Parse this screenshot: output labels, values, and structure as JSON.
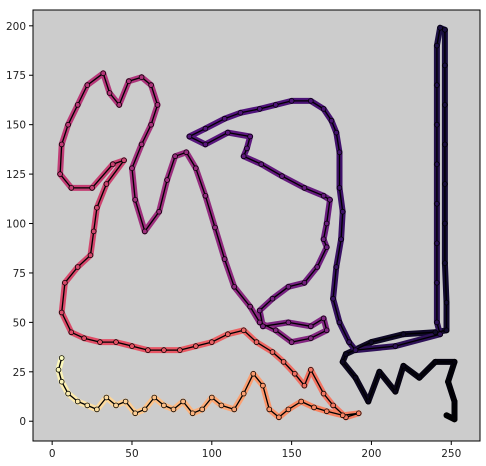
{
  "chart_data": {
    "type": "line",
    "title": "",
    "xlabel": "",
    "ylabel": "",
    "xlim": [
      -12,
      268
    ],
    "ylim": [
      -10,
      208
    ],
    "xticks": [
      0,
      50,
      100,
      150,
      200,
      250
    ],
    "yticks": [
      0,
      25,
      50,
      75,
      100,
      125,
      150,
      175,
      200
    ],
    "xtick_labels": [
      "0",
      "50",
      "100",
      "150",
      "200",
      "250"
    ],
    "ytick_labels": [
      "0",
      "25",
      "50",
      "75",
      "100",
      "125",
      "150",
      "175",
      "200"
    ],
    "background_color": "#cccccc",
    "grid": false,
    "legend": "none",
    "colormap": "magma",
    "path_points": [
      [
        247,
        3
      ],
      [
        252,
        1
      ],
      [
        252,
        10
      ],
      [
        248,
        20
      ],
      [
        252,
        30
      ],
      [
        240,
        30
      ],
      [
        230,
        22
      ],
      [
        220,
        28
      ],
      [
        215,
        15
      ],
      [
        205,
        25
      ],
      [
        198,
        10
      ],
      [
        190,
        22
      ],
      [
        182,
        30
      ],
      [
        184,
        34
      ],
      [
        200,
        40
      ],
      [
        220,
        44
      ],
      [
        240,
        45
      ],
      [
        247,
        46
      ],
      [
        247,
        60
      ],
      [
        246,
        80
      ],
      [
        246,
        100
      ],
      [
        246,
        120
      ],
      [
        246,
        140
      ],
      [
        246,
        160
      ],
      [
        246,
        180
      ],
      [
        246,
        198
      ],
      [
        243,
        199
      ],
      [
        241,
        190
      ],
      [
        241,
        170
      ],
      [
        241,
        150
      ],
      [
        241,
        130
      ],
      [
        241,
        110
      ],
      [
        241,
        90
      ],
      [
        241,
        70
      ],
      [
        241,
        50
      ],
      [
        243,
        44
      ],
      [
        215,
        38
      ],
      [
        190,
        36
      ],
      [
        186,
        40
      ],
      [
        180,
        50
      ],
      [
        176,
        62
      ],
      [
        178,
        78
      ],
      [
        181,
        92
      ],
      [
        182,
        106
      ],
      [
        180,
        118
      ],
      [
        180,
        136
      ],
      [
        178,
        146
      ],
      [
        175,
        152
      ],
      [
        170,
        158
      ],
      [
        162,
        162
      ],
      [
        150,
        162
      ],
      [
        140,
        160
      ],
      [
        130,
        158
      ],
      [
        118,
        156
      ],
      [
        108,
        153
      ],
      [
        96,
        148
      ],
      [
        86,
        144
      ],
      [
        96,
        140
      ],
      [
        110,
        146
      ],
      [
        124,
        144
      ],
      [
        122,
        138
      ],
      [
        120,
        134
      ],
      [
        131,
        130
      ],
      [
        144,
        124
      ],
      [
        158,
        118
      ],
      [
        170,
        114
      ],
      [
        174,
        112
      ],
      [
        172,
        100
      ],
      [
        170,
        92
      ],
      [
        172,
        88
      ],
      [
        166,
        78
      ],
      [
        158,
        70
      ],
      [
        148,
        68
      ],
      [
        138,
        62
      ],
      [
        130,
        56
      ],
      [
        132,
        48
      ],
      [
        148,
        50
      ],
      [
        162,
        48
      ],
      [
        170,
        52
      ],
      [
        172,
        46
      ],
      [
        162,
        42
      ],
      [
        150,
        40
      ],
      [
        140,
        46
      ],
      [
        130,
        50
      ],
      [
        124,
        58
      ],
      [
        114,
        68
      ],
      [
        108,
        82
      ],
      [
        102,
        98
      ],
      [
        96,
        114
      ],
      [
        90,
        128
      ],
      [
        84,
        136
      ],
      [
        77,
        134
      ],
      [
        72,
        122
      ],
      [
        67,
        106
      ],
      [
        58,
        96
      ],
      [
        52,
        112
      ],
      [
        50,
        128
      ],
      [
        56,
        140
      ],
      [
        62,
        150
      ],
      [
        66,
        160
      ],
      [
        62,
        170
      ],
      [
        56,
        174
      ],
      [
        48,
        172
      ],
      [
        42,
        160
      ],
      [
        36,
        166
      ],
      [
        32,
        176
      ],
      [
        22,
        170
      ],
      [
        16,
        160
      ],
      [
        10,
        150
      ],
      [
        6,
        140
      ],
      [
        5,
        125
      ],
      [
        12,
        118
      ],
      [
        25,
        118
      ],
      [
        38,
        130
      ],
      [
        45,
        132
      ],
      [
        34,
        120
      ],
      [
        28,
        108
      ],
      [
        26,
        96
      ],
      [
        24,
        84
      ],
      [
        16,
        78
      ],
      [
        8,
        70
      ],
      [
        6,
        55
      ],
      [
        12,
        45
      ],
      [
        20,
        42
      ],
      [
        30,
        40
      ],
      [
        40,
        40
      ],
      [
        50,
        38
      ],
      [
        60,
        36
      ],
      [
        70,
        36
      ],
      [
        80,
        36
      ],
      [
        90,
        38
      ],
      [
        100,
        40
      ],
      [
        110,
        44
      ],
      [
        120,
        46
      ],
      [
        128,
        40
      ],
      [
        138,
        35
      ],
      [
        145,
        30
      ],
      [
        152,
        24
      ],
      [
        158,
        18
      ],
      [
        162,
        26
      ],
      [
        170,
        14
      ],
      [
        176,
        8
      ],
      [
        184,
        2
      ],
      [
        192,
        4
      ],
      [
        182,
        3
      ],
      [
        172,
        5
      ],
      [
        164,
        7
      ],
      [
        156,
        10
      ],
      [
        148,
        6
      ],
      [
        142,
        2
      ],
      [
        136,
        6
      ],
      [
        132,
        18
      ],
      [
        126,
        24
      ],
      [
        120,
        14
      ],
      [
        114,
        6
      ],
      [
        106,
        8
      ],
      [
        100,
        12
      ],
      [
        94,
        6
      ],
      [
        88,
        4
      ],
      [
        82,
        10
      ],
      [
        76,
        6
      ],
      [
        70,
        8
      ],
      [
        64,
        12
      ],
      [
        58,
        6
      ],
      [
        52,
        4
      ],
      [
        46,
        10
      ],
      [
        40,
        8
      ],
      [
        34,
        12
      ],
      [
        28,
        6
      ],
      [
        22,
        8
      ],
      [
        16,
        10
      ],
      [
        10,
        14
      ],
      [
        6,
        20
      ],
      [
        4,
        26
      ],
      [
        6,
        32
      ]
    ]
  }
}
